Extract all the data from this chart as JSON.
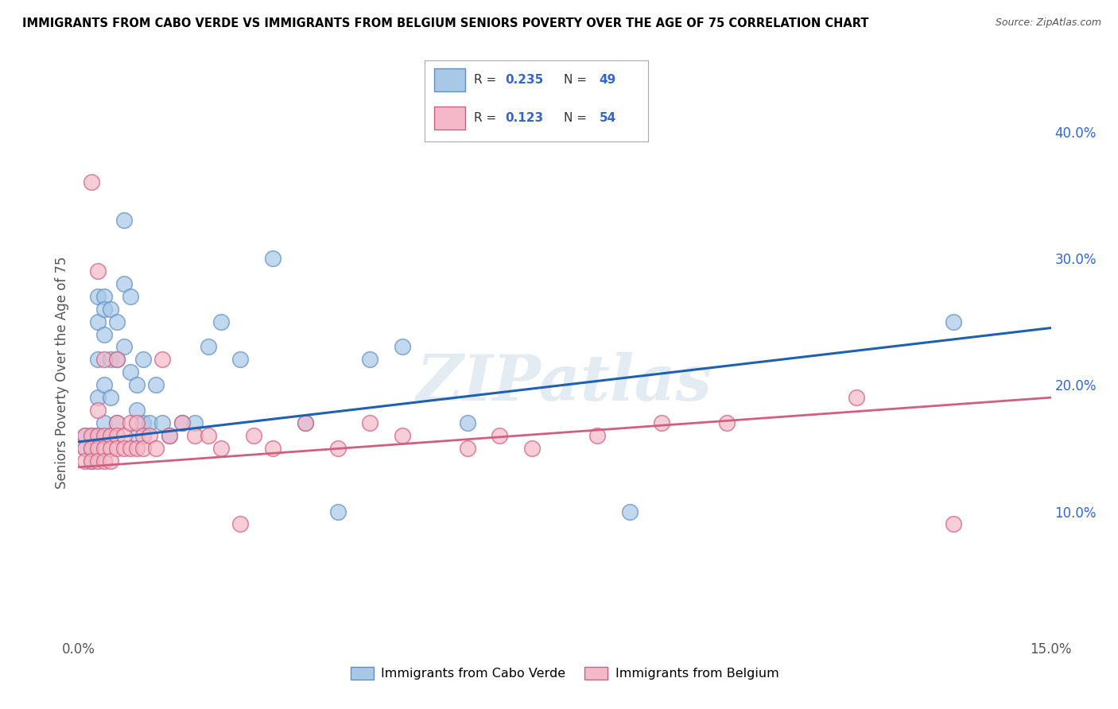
{
  "title": "IMMIGRANTS FROM CABO VERDE VS IMMIGRANTS FROM BELGIUM SENIORS POVERTY OVER THE AGE OF 75 CORRELATION CHART",
  "source": "Source: ZipAtlas.com",
  "ylabel": "Seniors Poverty Over the Age of 75",
  "xlim": [
    0.0,
    0.15
  ],
  "ylim": [
    0.0,
    0.42
  ],
  "legend_label1": "Immigrants from Cabo Verde",
  "legend_label2": "Immigrants from Belgium",
  "R1": 0.235,
  "N1": 49,
  "R2": 0.123,
  "N2": 54,
  "color1": "#a8c8e8",
  "color2": "#f4b8c8",
  "color1_edge": "#6090c0",
  "color2_edge": "#d06080",
  "line_color1": "#2060b0",
  "line_color2": "#d06080",
  "cabo_verde_x": [
    0.001,
    0.001,
    0.002,
    0.002,
    0.002,
    0.003,
    0.003,
    0.003,
    0.003,
    0.003,
    0.004,
    0.004,
    0.004,
    0.004,
    0.004,
    0.005,
    0.005,
    0.005,
    0.005,
    0.006,
    0.006,
    0.006,
    0.007,
    0.007,
    0.007,
    0.008,
    0.008,
    0.009,
    0.009,
    0.009,
    0.01,
    0.01,
    0.011,
    0.012,
    0.013,
    0.014,
    0.016,
    0.018,
    0.02,
    0.022,
    0.025,
    0.03,
    0.035,
    0.04,
    0.045,
    0.05,
    0.06,
    0.085,
    0.135
  ],
  "cabo_verde_y": [
    0.16,
    0.15,
    0.16,
    0.15,
    0.14,
    0.27,
    0.25,
    0.22,
    0.19,
    0.16,
    0.27,
    0.26,
    0.24,
    0.2,
    0.17,
    0.26,
    0.22,
    0.19,
    0.16,
    0.25,
    0.22,
    0.17,
    0.33,
    0.28,
    0.23,
    0.27,
    0.21,
    0.2,
    0.18,
    0.16,
    0.22,
    0.17,
    0.17,
    0.2,
    0.17,
    0.16,
    0.17,
    0.17,
    0.23,
    0.25,
    0.22,
    0.3,
    0.17,
    0.1,
    0.22,
    0.23,
    0.17,
    0.1,
    0.25
  ],
  "belgium_x": [
    0.001,
    0.001,
    0.001,
    0.002,
    0.002,
    0.002,
    0.002,
    0.003,
    0.003,
    0.003,
    0.003,
    0.003,
    0.004,
    0.004,
    0.004,
    0.004,
    0.005,
    0.005,
    0.005,
    0.006,
    0.006,
    0.006,
    0.006,
    0.007,
    0.007,
    0.008,
    0.008,
    0.009,
    0.009,
    0.01,
    0.01,
    0.011,
    0.012,
    0.013,
    0.014,
    0.016,
    0.018,
    0.02,
    0.022,
    0.025,
    0.027,
    0.03,
    0.035,
    0.04,
    0.045,
    0.05,
    0.06,
    0.065,
    0.07,
    0.08,
    0.09,
    0.1,
    0.12,
    0.135
  ],
  "belgium_y": [
    0.16,
    0.15,
    0.14,
    0.36,
    0.16,
    0.15,
    0.14,
    0.29,
    0.18,
    0.16,
    0.15,
    0.14,
    0.22,
    0.16,
    0.15,
    0.14,
    0.16,
    0.15,
    0.14,
    0.22,
    0.17,
    0.16,
    0.15,
    0.16,
    0.15,
    0.17,
    0.15,
    0.17,
    0.15,
    0.16,
    0.15,
    0.16,
    0.15,
    0.22,
    0.16,
    0.17,
    0.16,
    0.16,
    0.15,
    0.09,
    0.16,
    0.15,
    0.17,
    0.15,
    0.17,
    0.16,
    0.15,
    0.16,
    0.15,
    0.16,
    0.17,
    0.17,
    0.19,
    0.09
  ],
  "watermark": "ZIPatlas",
  "background_color": "#ffffff",
  "grid_color": "#d0d0d0",
  "text_color": "#555555",
  "legend_text_color": "#333333",
  "legend_value_color": "#3366cc"
}
